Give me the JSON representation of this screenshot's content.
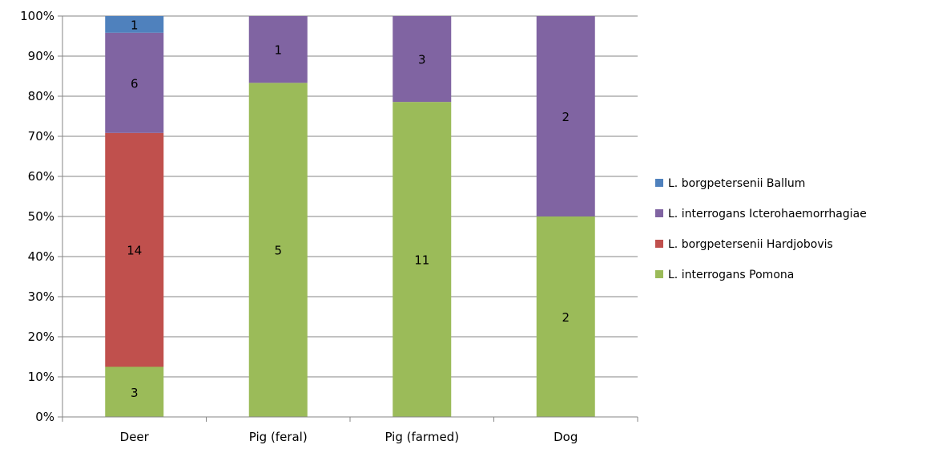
{
  "chart_data": {
    "type": "bar",
    "stacked": "percent",
    "categories": [
      "Deer",
      "Pig (feral)",
      "Pig (farmed)",
      "Dog"
    ],
    "series": [
      {
        "name": "L. interrogans Pomona",
        "color": "#9BBB59",
        "values": [
          3,
          5,
          11,
          2
        ]
      },
      {
        "name": "L. borgpetersenii Hardjobovis",
        "color": "#C0504D",
        "values": [
          14,
          0,
          0,
          0
        ]
      },
      {
        "name": "L. interrogans Icterohaemorrhagiae",
        "color": "#8064A2",
        "values": [
          6,
          1,
          3,
          2
        ]
      },
      {
        "name": "L. borgpetersenii Ballum",
        "color": "#4F81BD",
        "values": [
          1,
          0,
          0,
          0
        ]
      }
    ],
    "y_ticks": [
      "0%",
      "10%",
      "20%",
      "30%",
      "40%",
      "50%",
      "60%",
      "70%",
      "80%",
      "90%",
      "100%"
    ],
    "ylim": [
      0,
      100
    ],
    "grid": true,
    "legend_position": "right",
    "legend_order": [
      "L. borgpetersenii Ballum",
      "L. interrogans Icterohaemorrhagiae",
      "L. borgpetersenii Hardjobovis",
      "L. interrogans Pomona"
    ]
  }
}
